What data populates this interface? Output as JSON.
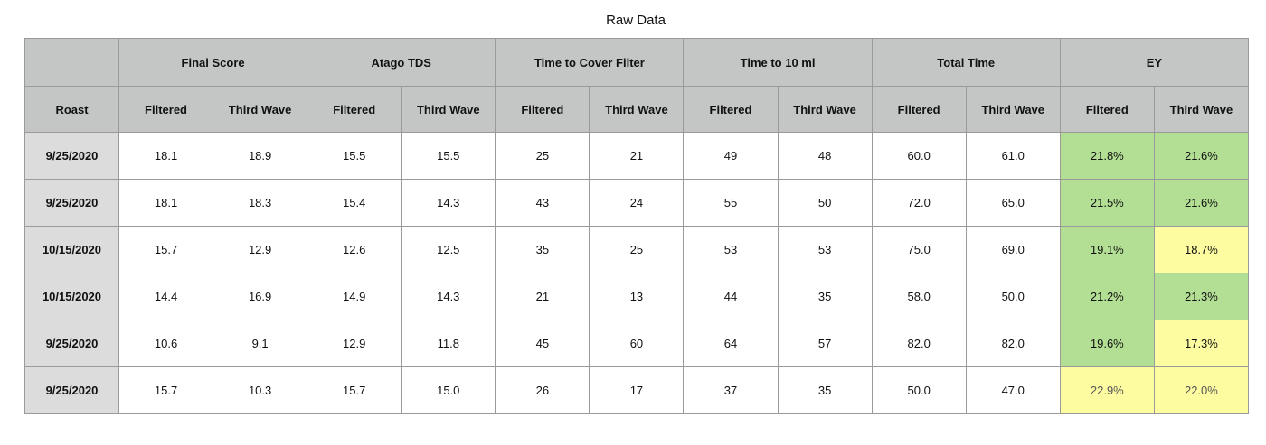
{
  "title": "Raw Data",
  "table": {
    "roast_header": "Roast",
    "groups": [
      {
        "label": "Final Score",
        "sub": [
          "Filtered",
          "Third Wave"
        ]
      },
      {
        "label": "Atago TDS",
        "sub": [
          "Filtered",
          "Third Wave"
        ]
      },
      {
        "label": "Time to Cover Filter",
        "sub": [
          "Filtered",
          "Third Wave"
        ]
      },
      {
        "label": "Time to 10 ml",
        "sub": [
          "Filtered",
          "Third Wave"
        ]
      },
      {
        "label": "Total Time",
        "sub": [
          "Filtered",
          "Third Wave"
        ]
      },
      {
        "label": "EY",
        "sub": [
          "Filtered",
          "Third Wave"
        ]
      }
    ],
    "rows": [
      {
        "roast": "9/25/2020",
        "values": [
          "18.1",
          "18.9",
          "15.5",
          "15.5",
          "25",
          "21",
          "49",
          "48",
          "60.0",
          "61.0",
          "21.8%",
          "21.6%"
        ],
        "ey_status": [
          "green",
          "green"
        ]
      },
      {
        "roast": "9/25/2020",
        "values": [
          "18.1",
          "18.3",
          "15.4",
          "14.3",
          "43",
          "24",
          "55",
          "50",
          "72.0",
          "65.0",
          "21.5%",
          "21.6%"
        ],
        "ey_status": [
          "green",
          "green"
        ]
      },
      {
        "roast": "10/15/2020",
        "values": [
          "15.7",
          "12.9",
          "12.6",
          "12.5",
          "35",
          "25",
          "53",
          "53",
          "75.0",
          "69.0",
          "19.1%",
          "18.7%"
        ],
        "ey_status": [
          "green",
          "yellow"
        ]
      },
      {
        "roast": "10/15/2020",
        "values": [
          "14.4",
          "16.9",
          "14.9",
          "14.3",
          "21",
          "13",
          "44",
          "35",
          "58.0",
          "50.0",
          "21.2%",
          "21.3%"
        ],
        "ey_status": [
          "green",
          "green"
        ]
      },
      {
        "roast": "9/25/2020",
        "values": [
          "10.6",
          "9.1",
          "12.9",
          "11.8",
          "45",
          "60",
          "64",
          "57",
          "82.0",
          "82.0",
          "19.6%",
          "17.3%"
        ],
        "ey_status": [
          "green",
          "yellow"
        ]
      },
      {
        "roast": "9/25/2020",
        "values": [
          "15.7",
          "10.3",
          "15.7",
          "15.0",
          "26",
          "17",
          "37",
          "35",
          "50.0",
          "47.0",
          "22.9%",
          "22.0%"
        ],
        "ey_status": [
          "yellow",
          "yellow"
        ]
      }
    ]
  },
  "colors": {
    "header_bg": "#c4c6c5",
    "roast_bg": "#dcdcdc",
    "ey_green": "#b3df94",
    "ey_yellow": "#fdfca1",
    "grid": "#9a9a9a"
  }
}
